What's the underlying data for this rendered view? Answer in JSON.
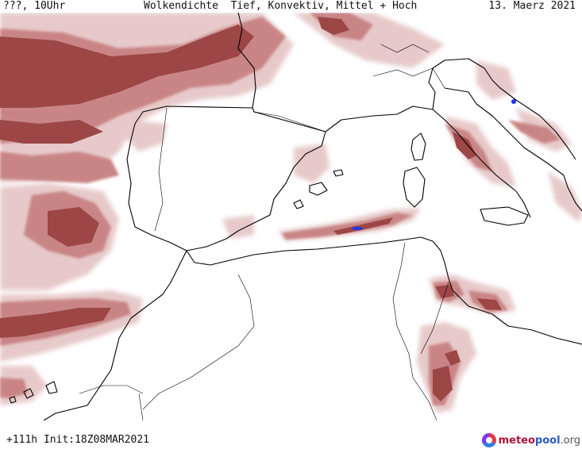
{
  "header": {
    "left": "???, 10Uhr",
    "title": "Wolkendichte  Tief, Konvektiv, Mittel + Hoch",
    "date": "13. Maerz 2021"
  },
  "footer": {
    "run": "+111h Init:18Z08MAR2021"
  },
  "logo": {
    "part1": "meteo",
    "part2": "pool",
    "part3": ".org"
  },
  "map": {
    "colors": {
      "cloud_light": "#e7c9c9",
      "cloud_mid": "#c98585",
      "cloud_dense": "#9c4646",
      "precip": "#2233ee",
      "coast": "#000000"
    }
  }
}
